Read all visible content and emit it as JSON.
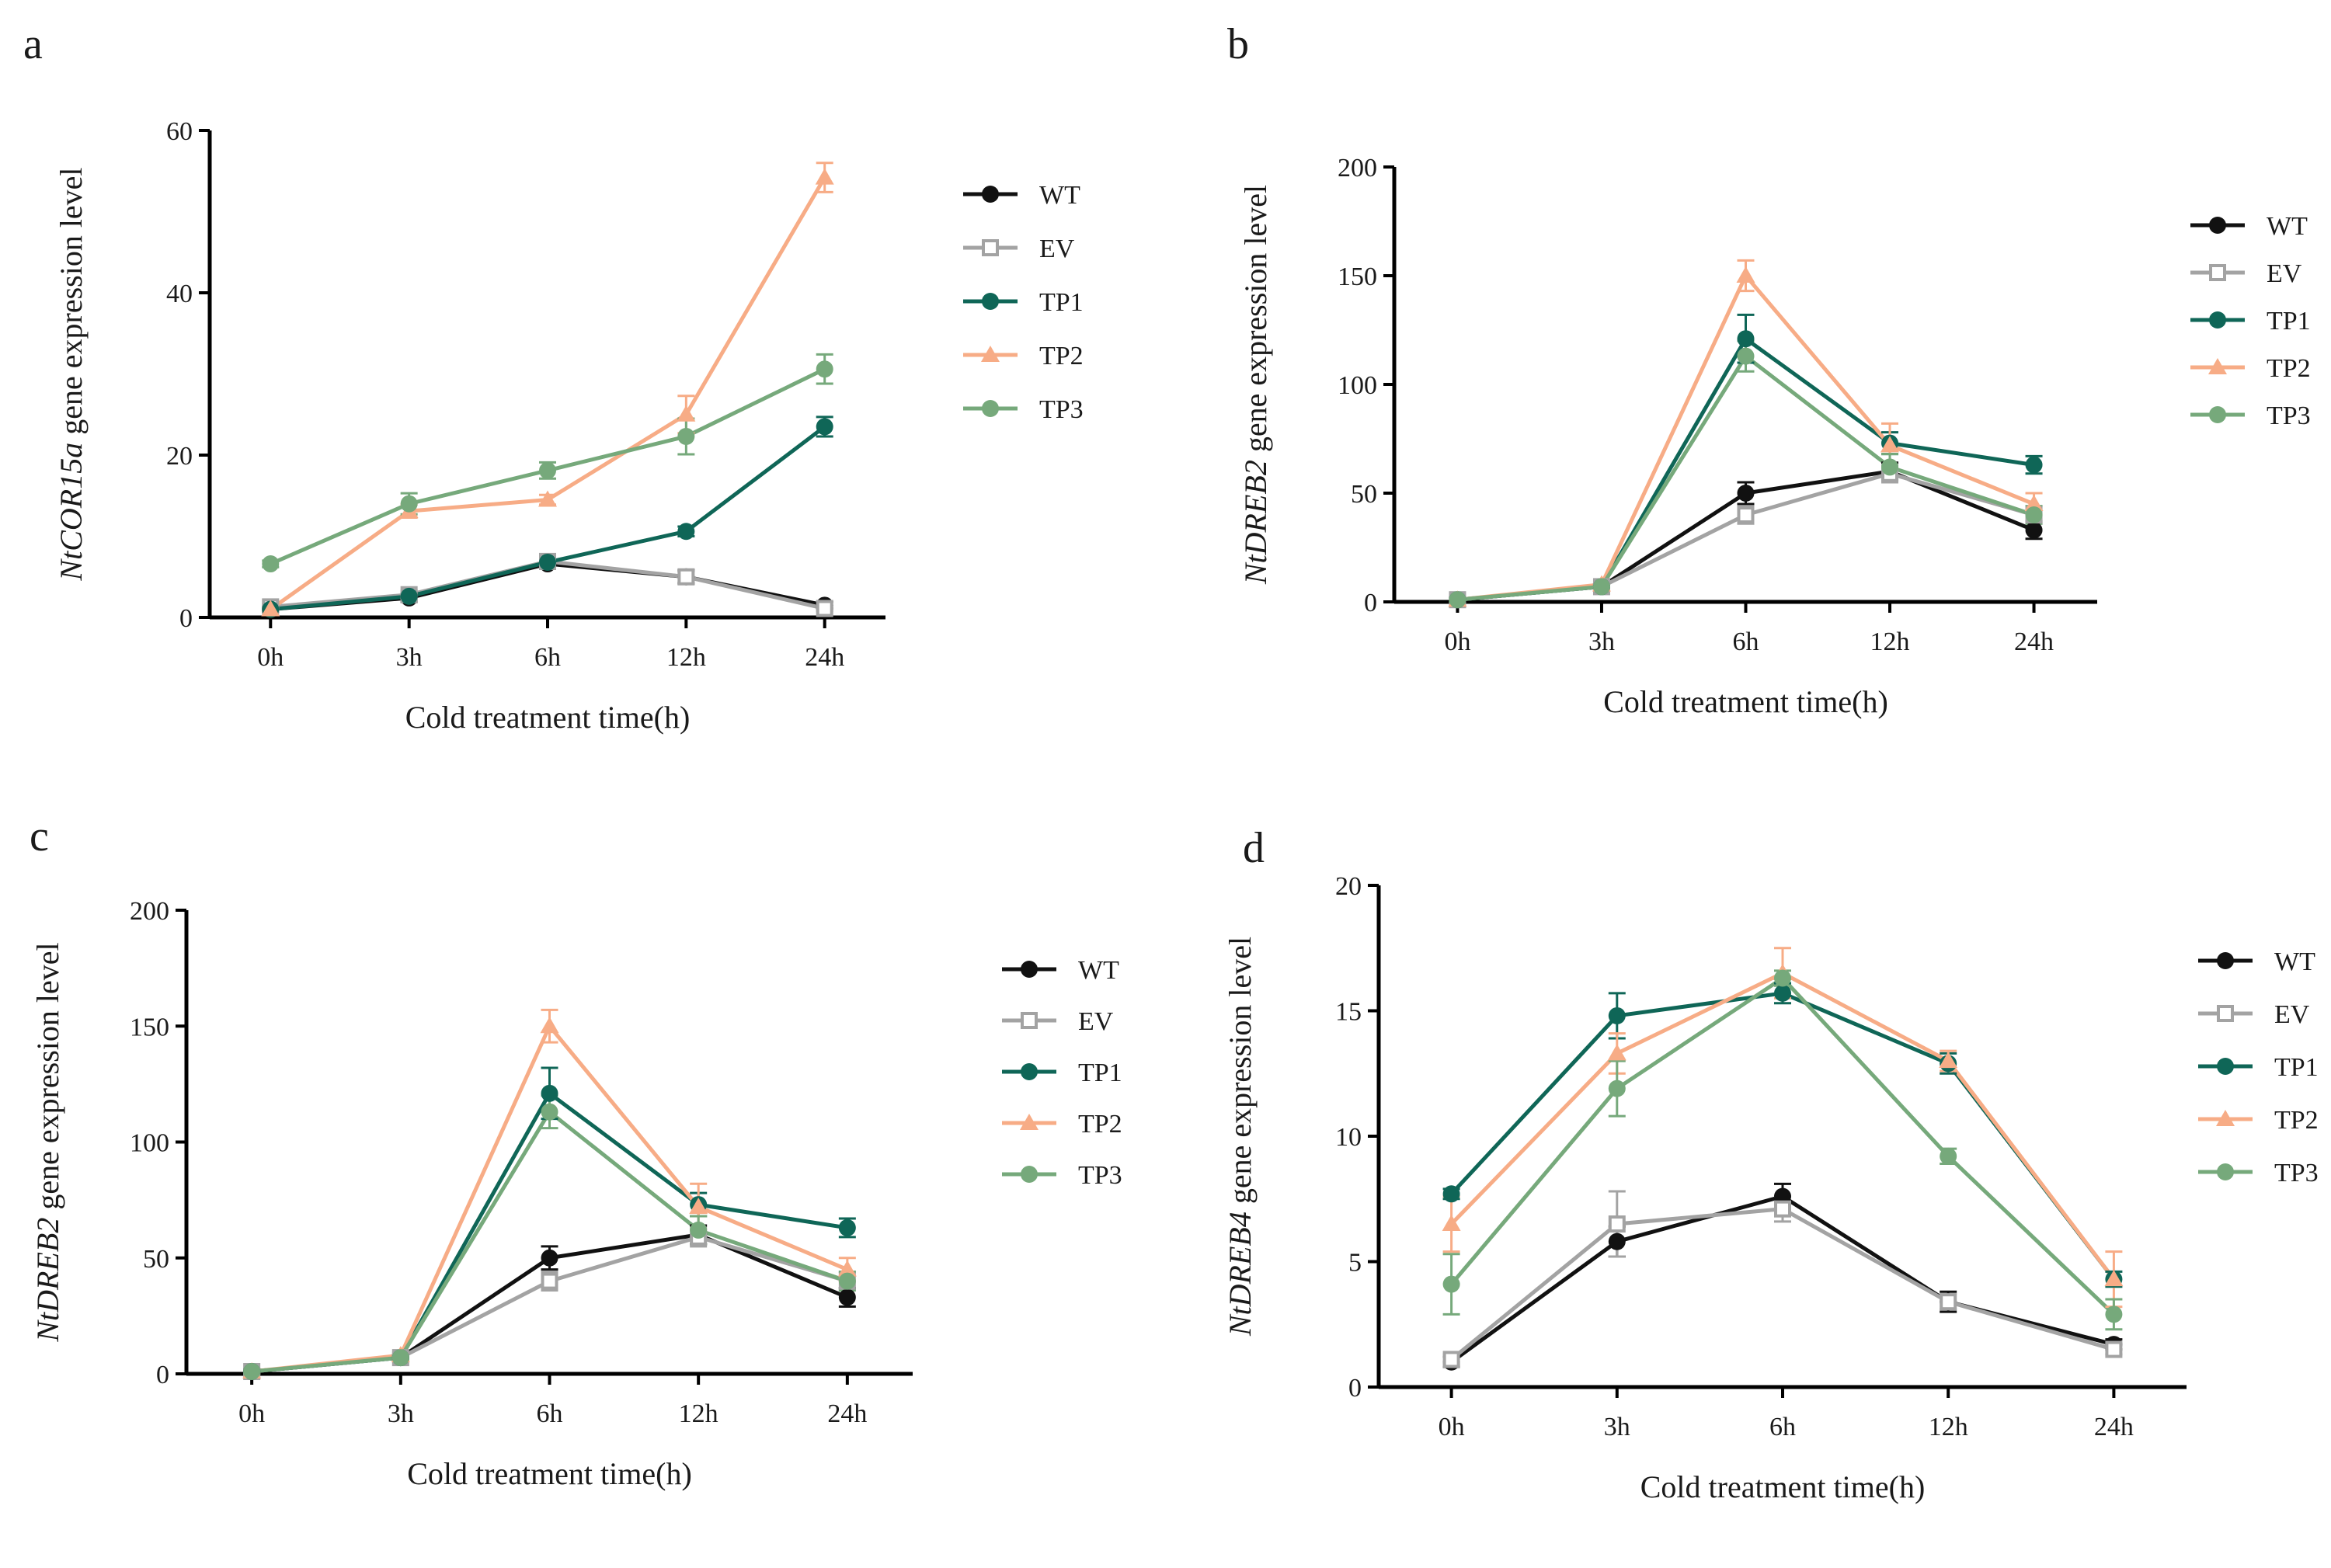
{
  "figure": {
    "series_styles": [
      {
        "name": "WT",
        "color": "#111111",
        "marker": "circle"
      },
      {
        "name": "EV",
        "color": "#a3a3a3",
        "marker": "square-open"
      },
      {
        "name": "TP1",
        "color": "#0f6657",
        "marker": "circle"
      },
      {
        "name": "TP2",
        "color": "#f7ac86",
        "marker": "triangle"
      },
      {
        "name": "TP3",
        "color": "#76a97b",
        "marker": "circle"
      }
    ]
  },
  "chart_data": [
    {
      "panel": "a",
      "type": "line",
      "xlabel": "Cold treatment time(h)",
      "ylabel_gene": "NtCOR15a",
      "ylabel_suffix": " gene expression level",
      "categories": [
        "0h",
        "3h",
        "6h",
        "12h",
        "24h"
      ],
      "ylim": [
        0,
        60
      ],
      "yticks": [
        0,
        20,
        40,
        60
      ],
      "legend": [
        "WT",
        "EV",
        "TP1",
        "TP2",
        "TP3"
      ],
      "series": [
        {
          "name": "WT",
          "values": [
            1.0,
            2.4,
            6.6,
            5.0,
            1.5
          ],
          "errors": [
            0.3,
            0.5,
            0.6,
            0.8,
            0.4
          ]
        },
        {
          "name": "EV",
          "values": [
            1.3,
            2.8,
            6.9,
            5.0,
            1.1
          ],
          "errors": [
            0.3,
            0.5,
            0.6,
            0.7,
            0.3
          ]
        },
        {
          "name": "TP1",
          "values": [
            1.0,
            2.6,
            6.8,
            10.6,
            23.5
          ],
          "errors": [
            0.2,
            0.4,
            0.6,
            0.6,
            1.2
          ]
        },
        {
          "name": "TP2",
          "values": [
            1.0,
            13.1,
            14.5,
            25.0,
            54.2
          ],
          "errors": [
            0.2,
            0.8,
            0.6,
            2.3,
            1.8
          ]
        },
        {
          "name": "TP3",
          "values": [
            6.6,
            14.0,
            18.1,
            22.3,
            30.6
          ],
          "errors": [
            0.4,
            1.3,
            1.0,
            2.2,
            1.8
          ]
        }
      ]
    },
    {
      "panel": "b",
      "type": "line",
      "xlabel": "Cold treatment time(h)",
      "ylabel_gene": "NtDREB2",
      "ylabel_suffix": " gene expression level",
      "categories": [
        "0h",
        "3h",
        "6h",
        "12h",
        "24h"
      ],
      "ylim": [
        0,
        200
      ],
      "yticks": [
        0,
        50,
        100,
        150,
        200
      ],
      "legend": [
        "WT",
        "EV",
        "TP1",
        "TP2",
        "TP3"
      ],
      "series": [
        {
          "name": "WT",
          "values": [
            1,
            7,
            50,
            60,
            33
          ],
          "errors": [
            1,
            1,
            5,
            4,
            4
          ]
        },
        {
          "name": "EV",
          "values": [
            1,
            7,
            40,
            59,
            40
          ],
          "errors": [
            1,
            1,
            4,
            4,
            4
          ]
        },
        {
          "name": "TP1",
          "values": [
            1,
            7,
            121,
            73,
            63
          ],
          "errors": [
            1,
            1,
            11,
            5,
            4
          ]
        },
        {
          "name": "TP2",
          "values": [
            1,
            8,
            150,
            72,
            45
          ],
          "errors": [
            1,
            1,
            7,
            10,
            5
          ]
        },
        {
          "name": "TP3",
          "values": [
            1,
            7,
            113,
            62,
            40
          ],
          "errors": [
            1,
            1,
            7,
            6,
            4
          ]
        }
      ]
    },
    {
      "panel": "c",
      "type": "line",
      "xlabel": "Cold treatment time(h)",
      "ylabel_gene": "NtDREB2",
      "ylabel_suffix": " gene expression level",
      "categories": [
        "0h",
        "3h",
        "6h",
        "12h",
        "24h"
      ],
      "ylim": [
        0,
        200
      ],
      "yticks": [
        0,
        50,
        100,
        150,
        200
      ],
      "legend": [
        "WT",
        "EV",
        "TP1",
        "TP2",
        "TP3"
      ],
      "series": [
        {
          "name": "WT",
          "values": [
            1,
            7,
            50,
            60,
            33
          ],
          "errors": [
            1,
            1,
            5,
            4,
            4
          ]
        },
        {
          "name": "EV",
          "values": [
            1,
            7,
            40,
            59,
            40
          ],
          "errors": [
            1,
            1,
            4,
            4,
            4
          ]
        },
        {
          "name": "TP1",
          "values": [
            1,
            7,
            121,
            73,
            63
          ],
          "errors": [
            1,
            1,
            11,
            5,
            4
          ]
        },
        {
          "name": "TP2",
          "values": [
            1,
            8,
            150,
            72,
            45
          ],
          "errors": [
            1,
            1,
            7,
            10,
            5
          ]
        },
        {
          "name": "TP3",
          "values": [
            1,
            7,
            113,
            62,
            40
          ],
          "errors": [
            1,
            1,
            7,
            6,
            4
          ]
        }
      ]
    },
    {
      "panel": "d",
      "type": "line",
      "xlabel": "Cold treatment time(h)",
      "ylabel_gene": "NtDREB4",
      "ylabel_suffix": " gene expression level",
      "categories": [
        "0h",
        "3h",
        "6h",
        "12h",
        "24h"
      ],
      "ylim": [
        0,
        20
      ],
      "yticks": [
        0,
        5,
        10,
        15,
        20
      ],
      "legend": [
        "WT",
        "EV",
        "TP1",
        "TP2",
        "TP3"
      ],
      "series": [
        {
          "name": "WT",
          "values": [
            1.0,
            5.8,
            7.6,
            3.4,
            1.7
          ],
          "errors": [
            0.2,
            0.6,
            0.5,
            0.4,
            0.2
          ]
        },
        {
          "name": "EV",
          "values": [
            1.1,
            6.5,
            7.1,
            3.4,
            1.5
          ],
          "errors": [
            0.2,
            1.3,
            0.5,
            0.3,
            0.2
          ]
        },
        {
          "name": "TP1",
          "values": [
            7.7,
            14.8,
            15.7,
            12.9,
            4.3
          ],
          "errors": [
            0.2,
            0.9,
            0.4,
            0.4,
            0.3
          ]
        },
        {
          "name": "TP2",
          "values": [
            6.5,
            13.3,
            16.5,
            13.0,
            4.3
          ],
          "errors": [
            1.1,
            0.8,
            1.0,
            0.4,
            1.1
          ]
        },
        {
          "name": "TP3",
          "values": [
            4.1,
            11.9,
            16.3,
            9.2,
            2.9
          ],
          "errors": [
            1.2,
            1.1,
            0.3,
            0.3,
            0.6
          ]
        }
      ]
    }
  ]
}
